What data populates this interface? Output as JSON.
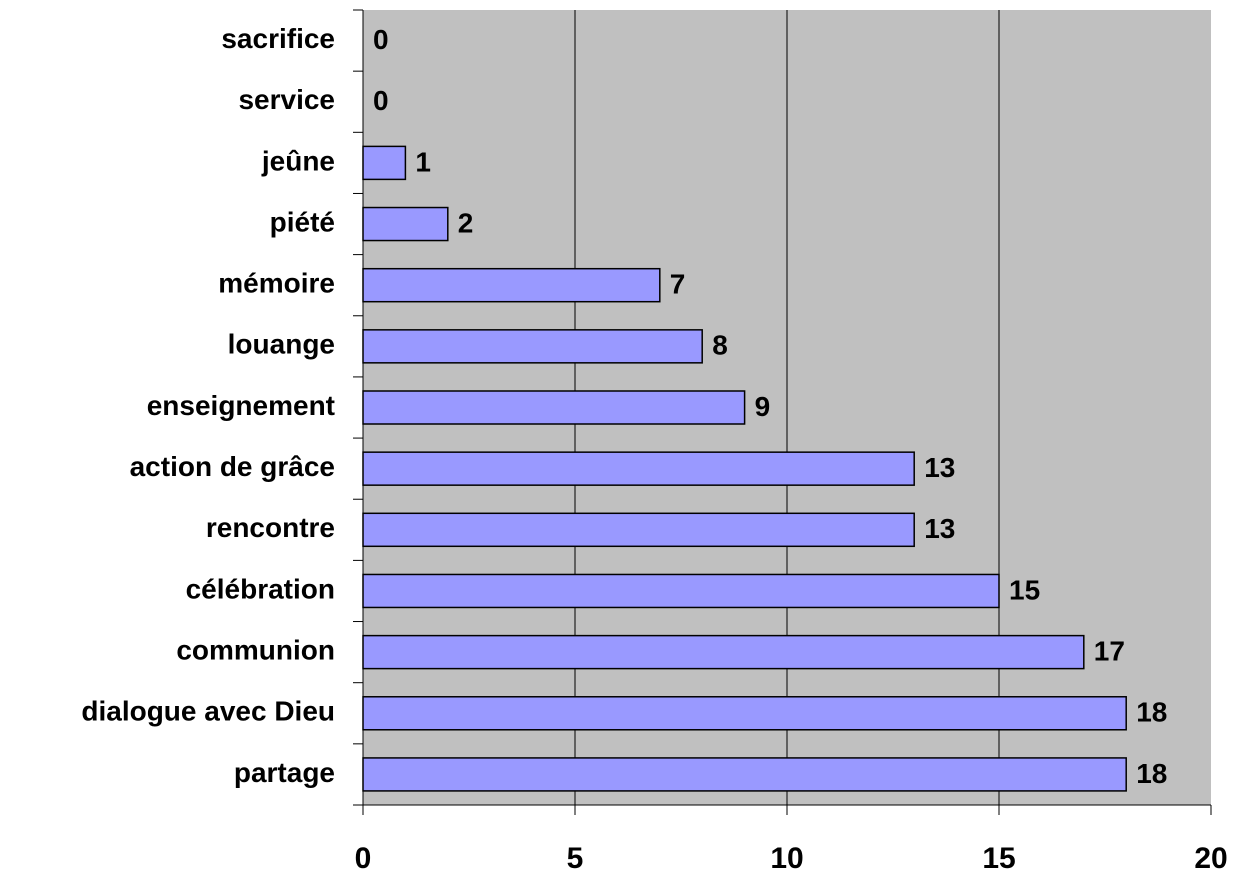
{
  "chart_data": {
    "type": "bar",
    "categories": [
      "sacrifice",
      "service",
      "jeûne",
      "piété",
      "mémoire",
      "louange",
      "enseignement",
      "action de grâce",
      "rencontre",
      "célébration",
      "communion",
      "dialogue avec Dieu",
      "partage"
    ],
    "values": [
      0,
      0,
      1,
      2,
      7,
      8,
      9,
      13,
      13,
      15,
      17,
      18,
      18
    ],
    "color": "#9999ff",
    "background": "#c0c0c0",
    "xlim": [
      0,
      20
    ],
    "xticks": [
      0,
      5,
      10,
      15,
      20
    ],
    "grid": true
  }
}
